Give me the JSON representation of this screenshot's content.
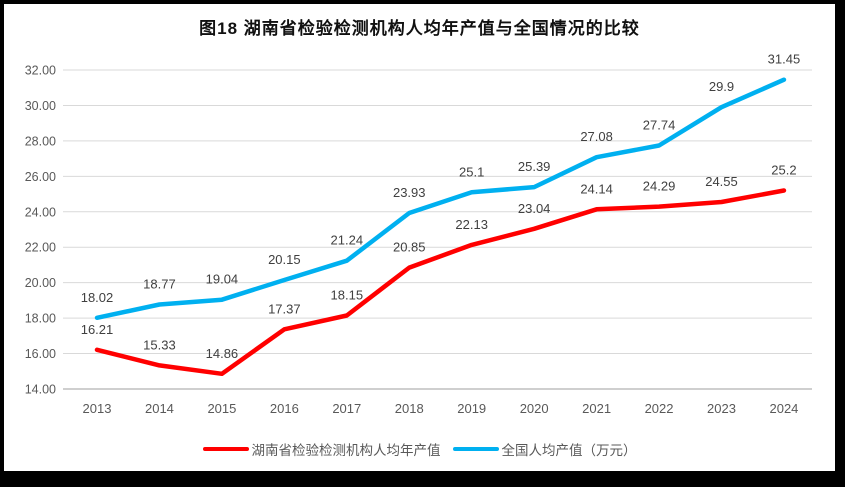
{
  "frame": {
    "border_color": "#000000",
    "background": "#ffffff"
  },
  "chart_data": {
    "type": "line",
    "title": "图18 湖南省检验检测机构人均年产值与全国情况的比较",
    "categories": [
      "2013",
      "2014",
      "2015",
      "2016",
      "2017",
      "2018",
      "2019",
      "2020",
      "2021",
      "2022",
      "2023",
      "2024"
    ],
    "series": [
      {
        "name": "湖南省检验检测机构人均年产值",
        "color": "#FF0000",
        "values": [
          16.21,
          15.33,
          14.86,
          17.37,
          18.15,
          20.85,
          22.13,
          23.04,
          24.14,
          24.29,
          24.55,
          25.2
        ],
        "labels": [
          "16.21",
          "15.33",
          "14.86",
          "17.37",
          "18.15",
          "20.85",
          "22.13",
          "23.04",
          "24.14",
          "24.29",
          "24.55",
          "25.2"
        ]
      },
      {
        "name": "全国人均产值（万元）",
        "color": "#00B0F0",
        "values": [
          18.02,
          18.77,
          19.04,
          20.15,
          21.24,
          23.93,
          25.1,
          25.39,
          27.08,
          27.74,
          29.9,
          31.45
        ],
        "labels": [
          "18.02",
          "18.77",
          "19.04",
          "20.15",
          "21.24",
          "23.93",
          "25.1",
          "25.39",
          "27.08",
          "27.74",
          "29.9",
          "31.45"
        ]
      }
    ],
    "xlabel": "",
    "ylabel": "",
    "ylim": [
      14,
      32
    ],
    "yticks": [
      14,
      16,
      18,
      20,
      22,
      24,
      26,
      28,
      30,
      32
    ],
    "ytick_labels": [
      "14.00",
      "16.00",
      "18.00",
      "20.00",
      "22.00",
      "24.00",
      "26.00",
      "28.00",
      "30.00",
      "32.00"
    ],
    "grid": true,
    "gridline_color": "#D9D9D9",
    "axis_line_color": "#BFBFBF",
    "tick_label_color": "#595959",
    "data_label_color": "#404040",
    "legend_position": "bottom"
  }
}
